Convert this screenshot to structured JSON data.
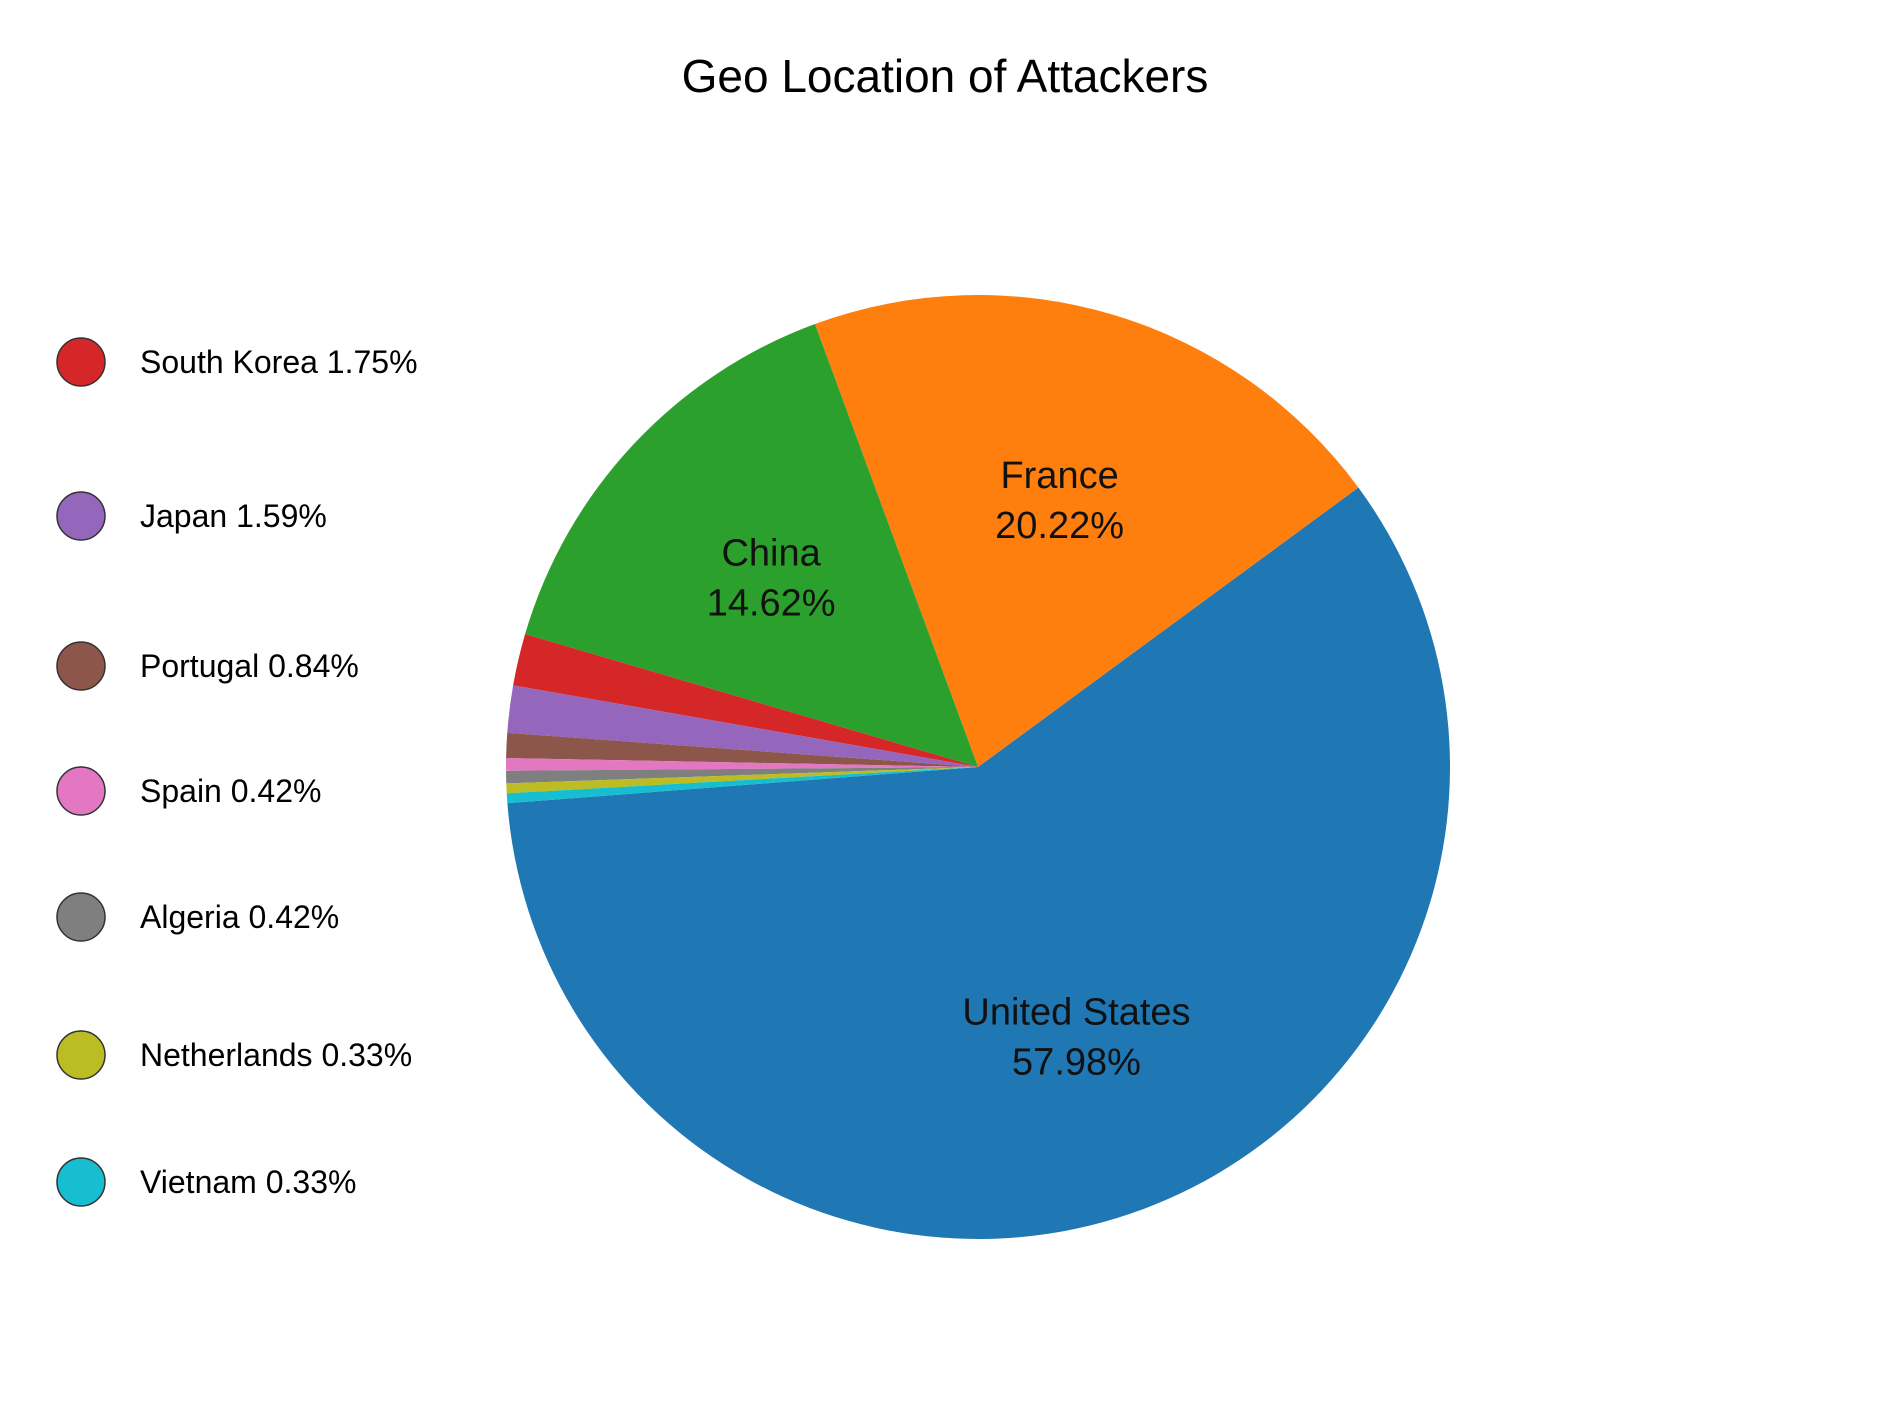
{
  "chart_data": {
    "type": "pie",
    "title": "Geo Location of Attackers",
    "slices": [
      {
        "name": "United States",
        "value": 57.98,
        "value_label": "57.98%",
        "color": "#1f77b4",
        "label_inside": true
      },
      {
        "name": "France",
        "value": 20.22,
        "value_label": "20.22%",
        "color": "#ff7f0e",
        "label_inside": true
      },
      {
        "name": "China",
        "value": 14.62,
        "value_label": "14.62%",
        "color": "#2ca02c",
        "label_inside": true
      },
      {
        "name": "South Korea",
        "value": 1.75,
        "value_label": "1.75%",
        "color": "#d62728",
        "label_inside": false
      },
      {
        "name": "Japan",
        "value": 1.59,
        "value_label": "1.59%",
        "color": "#9467bd",
        "label_inside": false
      },
      {
        "name": "Portugal",
        "value": 0.84,
        "value_label": "0.84%",
        "color": "#8c564b",
        "label_inside": false
      },
      {
        "name": "Spain",
        "value": 0.42,
        "value_label": "0.42%",
        "color": "#e377c2",
        "label_inside": false
      },
      {
        "name": "Algeria",
        "value": 0.42,
        "value_label": "0.42%",
        "color": "#7f7f7f",
        "label_inside": false
      },
      {
        "name": "Netherlands",
        "value": 0.33,
        "value_label": "0.33%",
        "color": "#bcbd22",
        "label_inside": false
      },
      {
        "name": "Vietnam",
        "value": 0.33,
        "value_label": "0.33%",
        "color": "#17becf",
        "label_inside": false
      }
    ],
    "legend": {
      "placement": "left",
      "entries": [
        {
          "text": "South Korea 1.75%",
          "color": "#d62728"
        },
        {
          "text": "Japan 1.59%",
          "color": "#9467bd"
        },
        {
          "text": "Portugal 0.84%",
          "color": "#8c564b"
        },
        {
          "text": "Spain 0.42%",
          "color": "#e377c2"
        },
        {
          "text": "Algeria 0.42%",
          "color": "#7f7f7f"
        },
        {
          "text": "Netherlands 0.33%",
          "color": "#bcbd22"
        },
        {
          "text": "Vietnam 0.33%",
          "color": "#17becf"
        }
      ]
    }
  }
}
